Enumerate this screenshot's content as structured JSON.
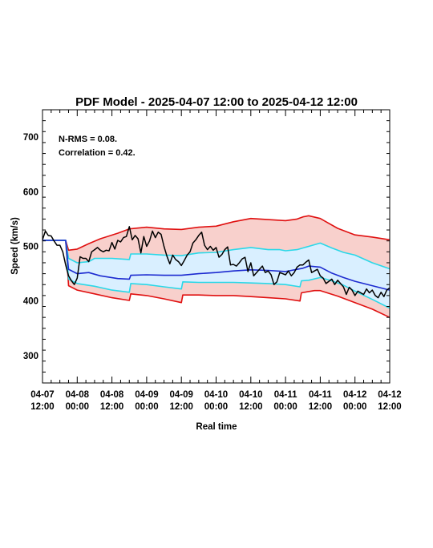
{
  "chart_data": {
    "type": "line",
    "title": "PDF Model - 2025-04-07 12:00 to 2025-04-12 12:00",
    "xlabel": "Real time",
    "ylabel": "Speed (km/s)",
    "xlim_hours": [
      0,
      120
    ],
    "ylim": [
      250,
      750
    ],
    "y_ticks": [
      300,
      400,
      500,
      600,
      700
    ],
    "x_ticks": [
      {
        "t": 0,
        "date": "04-07",
        "time": "12:00"
      },
      {
        "t": 12,
        "date": "04-08",
        "time": "00:00"
      },
      {
        "t": 24,
        "date": "04-08",
        "time": "12:00"
      },
      {
        "t": 36,
        "date": "04-09",
        "time": "00:00"
      },
      {
        "t": 48,
        "date": "04-09",
        "time": "12:00"
      },
      {
        "t": 60,
        "date": "04-10",
        "time": "00:00"
      },
      {
        "t": 72,
        "date": "04-10",
        "time": "12:00"
      },
      {
        "t": 84,
        "date": "04-11",
        "time": "00:00"
      },
      {
        "t": 96,
        "date": "04-11",
        "time": "12:00"
      },
      {
        "t": 108,
        "date": "04-12",
        "time": "00:00"
      },
      {
        "t": 120,
        "date": "04-12",
        "time": "12:00"
      }
    ],
    "annotations": [
      "N-RMS = 0.08.",
      "Correlation = 0.42."
    ],
    "grid": false,
    "colors": {
      "outer_band": "#f8d0cc",
      "inner_band": "#d9efff",
      "outer_line": "#e01010",
      "inner_line": "#2ad8e8",
      "median": "#1c2ad0",
      "observed": "#000000"
    },
    "series": [
      {
        "key": "upper_outer",
        "x": [
          0,
          8,
          9,
          12,
          16,
          20,
          26,
          30,
          36,
          42,
          48,
          54,
          60,
          66,
          72,
          78,
          84,
          88,
          90,
          92,
          96,
          98,
          102,
          108,
          114,
          120
        ],
        "y": [
          511,
          511,
          493,
          495,
          505,
          514,
          524,
          532,
          535,
          532,
          531,
          535,
          537,
          545,
          551,
          549,
          547,
          550,
          554,
          556,
          551,
          545,
          533,
          521,
          517,
          512
        ]
      },
      {
        "key": "upper_inner",
        "x": [
          0,
          8,
          9,
          12,
          16,
          18,
          24,
          30,
          30.5,
          36,
          42,
          48,
          54,
          60,
          66,
          72,
          78,
          82,
          84,
          88,
          92,
          96,
          100,
          104,
          108,
          114,
          120
        ],
        "y": [
          511,
          511,
          478,
          470,
          472,
          478,
          478,
          476,
          486,
          486,
          484,
          483,
          488,
          489,
          494,
          498,
          494,
          494,
          492,
          494,
          500,
          506,
          497,
          489,
          484,
          470,
          459
        ]
      },
      {
        "key": "median",
        "x": [
          0,
          8,
          9,
          12,
          16,
          20,
          26,
          30,
          30.5,
          36,
          42,
          48,
          54,
          60,
          66,
          72,
          78,
          84,
          90,
          92,
          96,
          100,
          104,
          108,
          114,
          120
        ],
        "y": [
          511,
          511,
          458,
          450,
          452,
          446,
          441,
          440,
          447,
          448,
          447,
          447,
          450,
          452,
          455,
          457,
          456,
          454,
          460,
          464,
          462,
          451,
          443,
          436,
          428,
          420
        ]
      },
      {
        "key": "lower_inner",
        "x": [
          0,
          8,
          9,
          12,
          18,
          24,
          30,
          30.5,
          36,
          42,
          48,
          48.5,
          54,
          60,
          66,
          72,
          78,
          84,
          89,
          89.5,
          92,
          96,
          100,
          104,
          108,
          114,
          120
        ],
        "y": [
          511,
          511,
          440,
          432,
          427,
          420,
          416,
          432,
          430,
          426,
          422,
          435,
          434,
          434,
          434,
          433,
          432,
          430,
          426,
          437,
          438,
          443,
          437,
          429,
          418,
          403,
          387
        ]
      },
      {
        "key": "lower_outer",
        "x": [
          0,
          8,
          9,
          12,
          18,
          24,
          30,
          30.5,
          36,
          42,
          48,
          48.5,
          54,
          60,
          66,
          72,
          78,
          84,
          89,
          89.5,
          94,
          96,
          102,
          108,
          114,
          120
        ],
        "y": [
          511,
          511,
          428,
          420,
          413,
          406,
          401,
          413,
          410,
          404,
          397,
          411,
          411,
          410,
          410,
          408,
          406,
          404,
          400,
          415,
          419,
          419,
          409,
          397,
          385,
          370
        ]
      },
      {
        "key": "observed",
        "x": [
          0,
          1,
          2,
          3,
          4,
          5,
          6,
          7,
          8,
          9,
          10,
          11,
          12,
          13,
          14,
          15,
          16,
          17,
          18,
          19,
          20,
          21,
          22,
          23,
          24,
          25,
          26,
          27,
          28,
          29,
          30,
          31,
          32,
          33,
          34,
          35,
          36,
          37,
          38,
          39,
          40,
          41,
          42,
          43,
          44,
          45,
          46,
          47,
          48,
          49,
          50,
          51,
          52,
          53,
          54,
          55,
          56,
          57,
          58,
          59,
          60,
          61,
          62,
          63,
          64,
          65,
          66,
          67,
          68,
          69,
          70,
          71,
          72,
          73,
          74,
          75,
          76,
          77,
          78,
          79,
          80,
          81,
          82,
          83,
          84,
          85,
          86,
          87,
          88,
          89,
          90,
          91,
          92,
          93,
          94,
          95,
          96,
          97,
          98,
          99,
          100,
          101,
          102,
          103,
          104,
          105,
          106,
          107,
          108,
          109,
          110,
          111,
          112,
          113,
          114,
          115,
          116,
          117,
          118,
          119,
          120
        ],
        "y": [
          512,
          528,
          520,
          519,
          510,
          502,
          502,
          490,
          466,
          446,
          437,
          430,
          442,
          481,
          478,
          478,
          472,
          490,
          494,
          498,
          493,
          490,
          493,
          492,
          507,
          495,
          511,
          508,
          516,
          518,
          536,
          512,
          520,
          514,
          488,
          518,
          500,
          510,
          528,
          516,
          526,
          522,
          500,
          482,
          468,
          484,
          476,
          472,
          465,
          474,
          484,
          490,
          506,
          512,
          520,
          526,
          502,
          494,
          500,
          493,
          498,
          480,
          485,
          494,
          499,
          466,
          467,
          464,
          470,
          477,
          480,
          454,
          470,
          446,
          452,
          458,
          464,
          452,
          455,
          448,
          430,
          435,
          452,
          450,
          448,
          455,
          446,
          452,
          462,
          466,
          466,
          471,
          475,
          452,
          455,
          458,
          446,
          442,
          432,
          436,
          440,
          430,
          438,
          432,
          426,
          412,
          425,
          420,
          410,
          418,
          415,
          412,
          422,
          415,
          420,
          410,
          406,
          416,
          408,
          420,
          424
        ]
      }
    ]
  }
}
